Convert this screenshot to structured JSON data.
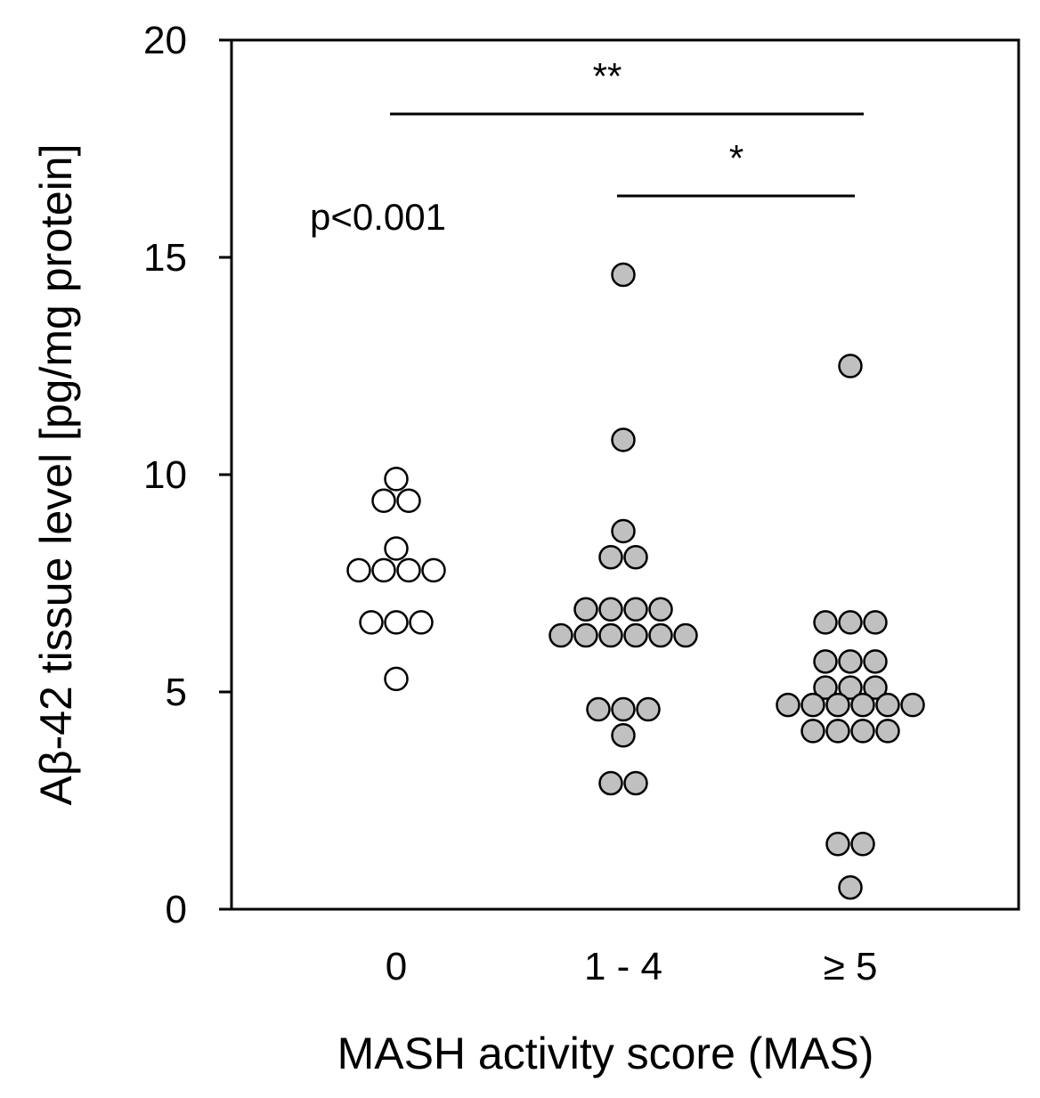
{
  "chart_data": {
    "type": "scatter",
    "title": "",
    "xlabel": "MASH activity score (MAS)",
    "ylabel": "Aβ-42 tissue level [pg/mg protein]",
    "ylim": [
      0,
      20
    ],
    "yticks": [
      0,
      5,
      10,
      15,
      20
    ],
    "categories": [
      "0",
      "1 - 4",
      "≥ 5"
    ],
    "fill_colors": [
      "#ffffff",
      "#c0c0c0",
      "#c0c0c0"
    ],
    "series": [
      {
        "name": "0",
        "values": [
          9.9,
          9.4,
          9.4,
          8.3,
          7.8,
          7.8,
          7.8,
          7.8,
          6.6,
          6.6,
          6.6,
          5.3
        ]
      },
      {
        "name": "1 - 4",
        "values": [
          14.6,
          10.8,
          8.7,
          8.1,
          8.1,
          6.9,
          6.9,
          6.9,
          6.9,
          6.3,
          6.3,
          6.3,
          6.3,
          6.3,
          6.3,
          4.6,
          4.6,
          4.6,
          4.0,
          2.9,
          2.9
        ]
      },
      {
        "name": "≥ 5",
        "values": [
          12.5,
          6.6,
          6.6,
          6.6,
          5.7,
          5.7,
          5.7,
          5.1,
          5.1,
          5.1,
          4.7,
          4.7,
          4.7,
          4.7,
          4.7,
          4.7,
          4.1,
          4.1,
          4.1,
          4.1,
          1.5,
          1.5,
          0.5
        ]
      }
    ],
    "annotations": {
      "overall_p": "p<0.001",
      "comparisons": [
        {
          "from": "0",
          "to": "≥ 5",
          "label": "**"
        },
        {
          "from": "1 - 4",
          "to": "≥ 5",
          "label": "*"
        }
      ]
    }
  }
}
